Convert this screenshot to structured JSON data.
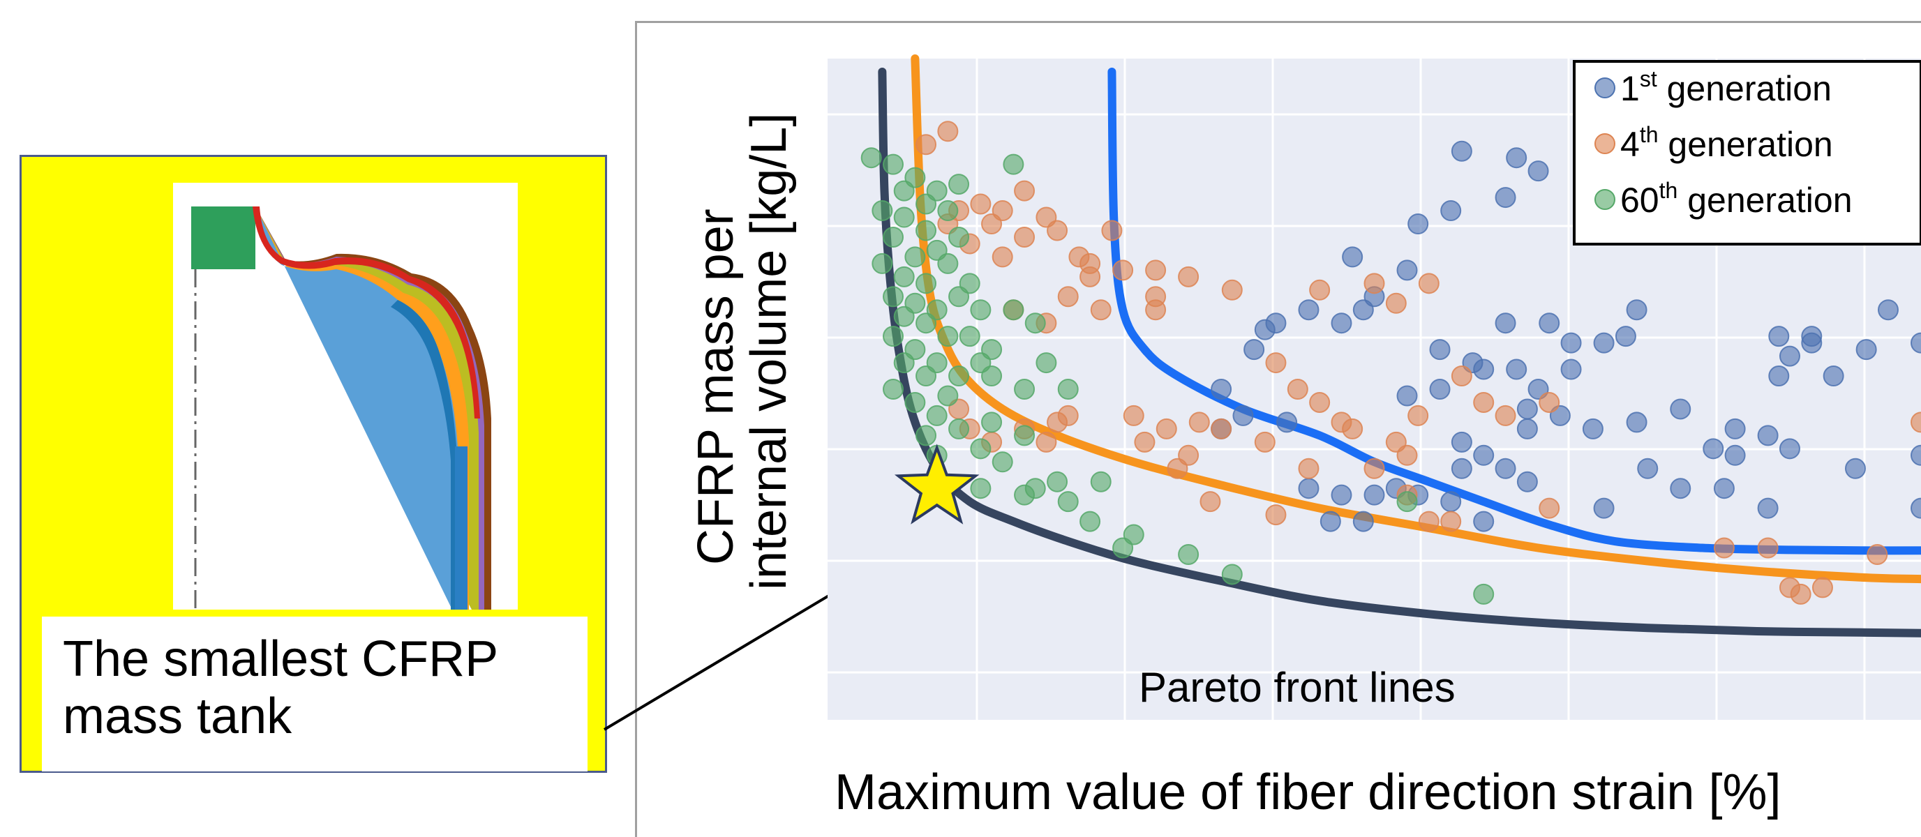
{
  "chart_data": {
    "type": "scatter",
    "xlabel": "Maximum value of fiber direction strain [%]",
    "ylabel_lines": [
      "CFRP mass per",
      "internal volume [kg/L]"
    ],
    "grid": true,
    "legend_placement": "top-right",
    "x_range": [
      0,
      100
    ],
    "y_range": [
      0,
      100
    ],
    "series": [
      {
        "name_main": "1",
        "name_sup": "st",
        "name_rest": "generation",
        "color": "#4c72b0",
        "points": [
          [
            54,
            75
          ],
          [
            58,
            86
          ],
          [
            63,
            85
          ],
          [
            65,
            83
          ],
          [
            70,
            81
          ],
          [
            62,
            79
          ],
          [
            57,
            77
          ],
          [
            75,
            80
          ],
          [
            48,
            70
          ],
          [
            50,
            64
          ],
          [
            53,
            68
          ],
          [
            40,
            59
          ],
          [
            39,
            56
          ],
          [
            41,
            60
          ],
          [
            44,
            62
          ],
          [
            47,
            60
          ],
          [
            49,
            62
          ],
          [
            62,
            60
          ],
          [
            66,
            60
          ],
          [
            74,
            62
          ],
          [
            68,
            57
          ],
          [
            71,
            57
          ],
          [
            73,
            58
          ],
          [
            56,
            56
          ],
          [
            59,
            54
          ],
          [
            60,
            53
          ],
          [
            63,
            53
          ],
          [
            65,
            50
          ],
          [
            56,
            50
          ],
          [
            53,
            49
          ],
          [
            64,
            47
          ],
          [
            67,
            46
          ],
          [
            64,
            44
          ],
          [
            58,
            42
          ],
          [
            58,
            38
          ],
          [
            62,
            38
          ],
          [
            64,
            36
          ],
          [
            75,
            38
          ],
          [
            74,
            45
          ],
          [
            70,
            44
          ],
          [
            78,
            47
          ],
          [
            83,
            44
          ],
          [
            81,
            41
          ],
          [
            90,
            58
          ],
          [
            88,
            55
          ],
          [
            87,
            58
          ],
          [
            90,
            57
          ],
          [
            87,
            52
          ],
          [
            92,
            52
          ],
          [
            95,
            56
          ],
          [
            97,
            62
          ],
          [
            100,
            57
          ],
          [
            36,
            50
          ],
          [
            38,
            46
          ],
          [
            42,
            45
          ],
          [
            36,
            44
          ],
          [
            44,
            35
          ],
          [
            50,
            34
          ],
          [
            52,
            35
          ],
          [
            54,
            34
          ],
          [
            57,
            33
          ],
          [
            60,
            30
          ],
          [
            49,
            30
          ],
          [
            46,
            30
          ],
          [
            47,
            34
          ],
          [
            78,
            35
          ],
          [
            82,
            35
          ],
          [
            83,
            40
          ],
          [
            86,
            43
          ],
          [
            88,
            41
          ],
          [
            60,
            40
          ],
          [
            68,
            53
          ],
          [
            71,
            32
          ],
          [
            86,
            32
          ],
          [
            94,
            38
          ],
          [
            100,
            40
          ],
          [
            100,
            32
          ]
        ]
      },
      {
        "name_main": "4",
        "name_sup": "th",
        "name_rest": "generation",
        "color": "#dd8452",
        "points": [
          [
            11,
            89
          ],
          [
            9,
            87
          ],
          [
            18,
            80
          ],
          [
            14,
            78
          ],
          [
            16,
            77
          ],
          [
            20,
            76
          ],
          [
            12,
            77
          ],
          [
            15,
            75
          ],
          [
            18,
            73
          ],
          [
            11,
            75
          ],
          [
            13,
            72
          ],
          [
            16,
            70
          ],
          [
            21,
            74
          ],
          [
            26,
            74
          ],
          [
            27,
            68
          ],
          [
            23,
            70
          ],
          [
            24,
            67
          ],
          [
            30,
            68
          ],
          [
            33,
            67
          ],
          [
            37,
            65
          ],
          [
            30,
            64
          ],
          [
            30,
            62
          ],
          [
            20,
            60
          ],
          [
            22,
            64
          ],
          [
            17,
            62
          ],
          [
            25,
            62
          ],
          [
            45,
            65
          ],
          [
            50,
            66
          ],
          [
            52,
            63
          ],
          [
            55,
            66
          ],
          [
            41,
            54
          ],
          [
            43,
            50
          ],
          [
            45,
            48
          ],
          [
            47,
            45
          ],
          [
            48,
            44
          ],
          [
            58,
            52
          ],
          [
            60,
            48
          ],
          [
            62,
            46
          ],
          [
            66,
            48
          ],
          [
            54,
            46
          ],
          [
            52,
            42
          ],
          [
            53,
            40
          ],
          [
            13,
            44
          ],
          [
            15,
            42
          ],
          [
            18,
            44
          ],
          [
            12,
            47
          ],
          [
            21,
            45
          ],
          [
            28,
            46
          ],
          [
            31,
            44
          ],
          [
            33,
            40
          ],
          [
            36,
            44
          ],
          [
            40,
            42
          ],
          [
            32,
            38
          ],
          [
            44,
            38
          ],
          [
            50,
            38
          ],
          [
            53,
            34
          ],
          [
            55,
            30
          ],
          [
            57,
            30
          ],
          [
            66,
            32
          ],
          [
            82,
            26
          ],
          [
            86,
            26
          ],
          [
            100,
            45
          ],
          [
            89,
            19
          ],
          [
            88,
            20
          ],
          [
            91,
            20
          ],
          [
            96,
            25
          ],
          [
            24,
            69
          ],
          [
            20,
            42
          ],
          [
            22,
            46
          ],
          [
            34,
            45
          ],
          [
            29,
            42
          ],
          [
            35,
            33
          ],
          [
            41,
            31
          ]
        ]
      },
      {
        "name_main": "60",
        "name_sup": "th",
        "name_rest": "generation",
        "color": "#55a868",
        "points": [
          [
            4,
            85
          ],
          [
            6,
            84
          ],
          [
            8,
            82
          ],
          [
            10,
            80
          ],
          [
            12,
            81
          ],
          [
            7,
            80
          ],
          [
            9,
            78
          ],
          [
            5,
            77
          ],
          [
            11,
            77
          ],
          [
            7,
            76
          ],
          [
            9,
            74
          ],
          [
            6,
            73
          ],
          [
            12,
            73
          ],
          [
            10,
            71
          ],
          [
            8,
            70
          ],
          [
            11,
            69
          ],
          [
            5,
            69
          ],
          [
            7,
            67
          ],
          [
            9,
            66
          ],
          [
            13,
            66
          ],
          [
            6,
            64
          ],
          [
            8,
            63
          ],
          [
            10,
            62
          ],
          [
            14,
            62
          ],
          [
            12,
            64
          ],
          [
            7,
            61
          ],
          [
            9,
            60
          ],
          [
            6,
            58
          ],
          [
            11,
            58
          ],
          [
            8,
            56
          ],
          [
            13,
            58
          ],
          [
            15,
            56
          ],
          [
            10,
            54
          ],
          [
            14,
            54
          ],
          [
            7,
            54
          ],
          [
            12,
            52
          ],
          [
            9,
            52
          ],
          [
            17,
            62
          ],
          [
            19,
            60
          ],
          [
            15,
            52
          ],
          [
            18,
            50
          ],
          [
            20,
            54
          ],
          [
            22,
            50
          ],
          [
            6,
            50
          ],
          [
            8,
            48
          ],
          [
            11,
            49
          ],
          [
            15,
            45
          ],
          [
            18,
            43
          ],
          [
            10,
            46
          ],
          [
            12,
            44
          ],
          [
            9,
            43
          ],
          [
            14,
            41
          ],
          [
            16,
            39
          ],
          [
            19,
            35
          ],
          [
            21,
            36
          ],
          [
            22,
            33
          ],
          [
            25,
            36
          ],
          [
            24,
            30
          ],
          [
            28,
            28
          ],
          [
            33,
            25
          ],
          [
            37,
            22
          ],
          [
            60,
            19
          ],
          [
            53,
            33
          ],
          [
            17,
            84
          ],
          [
            18,
            34
          ],
          [
            27,
            26
          ],
          [
            14,
            35
          ],
          [
            10,
            40
          ]
        ]
      }
    ],
    "fronts": [
      {
        "name": "4th front",
        "color": "#f7941d",
        "points": [
          [
            8,
            100
          ],
          [
            8.5,
            78
          ],
          [
            9.3,
            65
          ],
          [
            10.5,
            58
          ],
          [
            12.5,
            52
          ],
          [
            16,
            47
          ],
          [
            21,
            43
          ],
          [
            28,
            39
          ],
          [
            36,
            35.5
          ],
          [
            45,
            32
          ],
          [
            55,
            29
          ],
          [
            65,
            26
          ],
          [
            75,
            24
          ],
          [
            85,
            22.5
          ],
          [
            95,
            21.5
          ],
          [
            100,
            21.3
          ]
        ]
      },
      {
        "name": "1st front",
        "color": "#1b6ef5",
        "points": [
          [
            26,
            98
          ],
          [
            26.2,
            75
          ],
          [
            27,
            62
          ],
          [
            29,
            56
          ],
          [
            32,
            52
          ],
          [
            38,
            47
          ],
          [
            45,
            43
          ],
          [
            50,
            39
          ],
          [
            55,
            36
          ],
          [
            60,
            33
          ],
          [
            66,
            29.5
          ],
          [
            72,
            27
          ],
          [
            80,
            26
          ],
          [
            88,
            25.7
          ],
          [
            95,
            25.6
          ],
          [
            100,
            25.6
          ]
        ]
      },
      {
        "name": "smallest front",
        "color": "#36455f",
        "points": [
          [
            5,
            98
          ],
          [
            5.2,
            80
          ],
          [
            5.7,
            67
          ],
          [
            6.5,
            56
          ],
          [
            7.8,
            46
          ],
          [
            10,
            38
          ],
          [
            13,
            33
          ],
          [
            17,
            30
          ],
          [
            22,
            27
          ],
          [
            28,
            24
          ],
          [
            36,
            21
          ],
          [
            45,
            18
          ],
          [
            55,
            16
          ],
          [
            65,
            14.7
          ],
          [
            75,
            13.9
          ],
          [
            85,
            13.4
          ],
          [
            95,
            13.2
          ],
          [
            100,
            13.1
          ]
        ]
      }
    ],
    "optimum": {
      "x": 10,
      "y": 35
    },
    "annotation": "Pareto front lines"
  },
  "inset": {
    "caption_line1": "The smallest CFRP",
    "caption_line2": "mass tank"
  }
}
